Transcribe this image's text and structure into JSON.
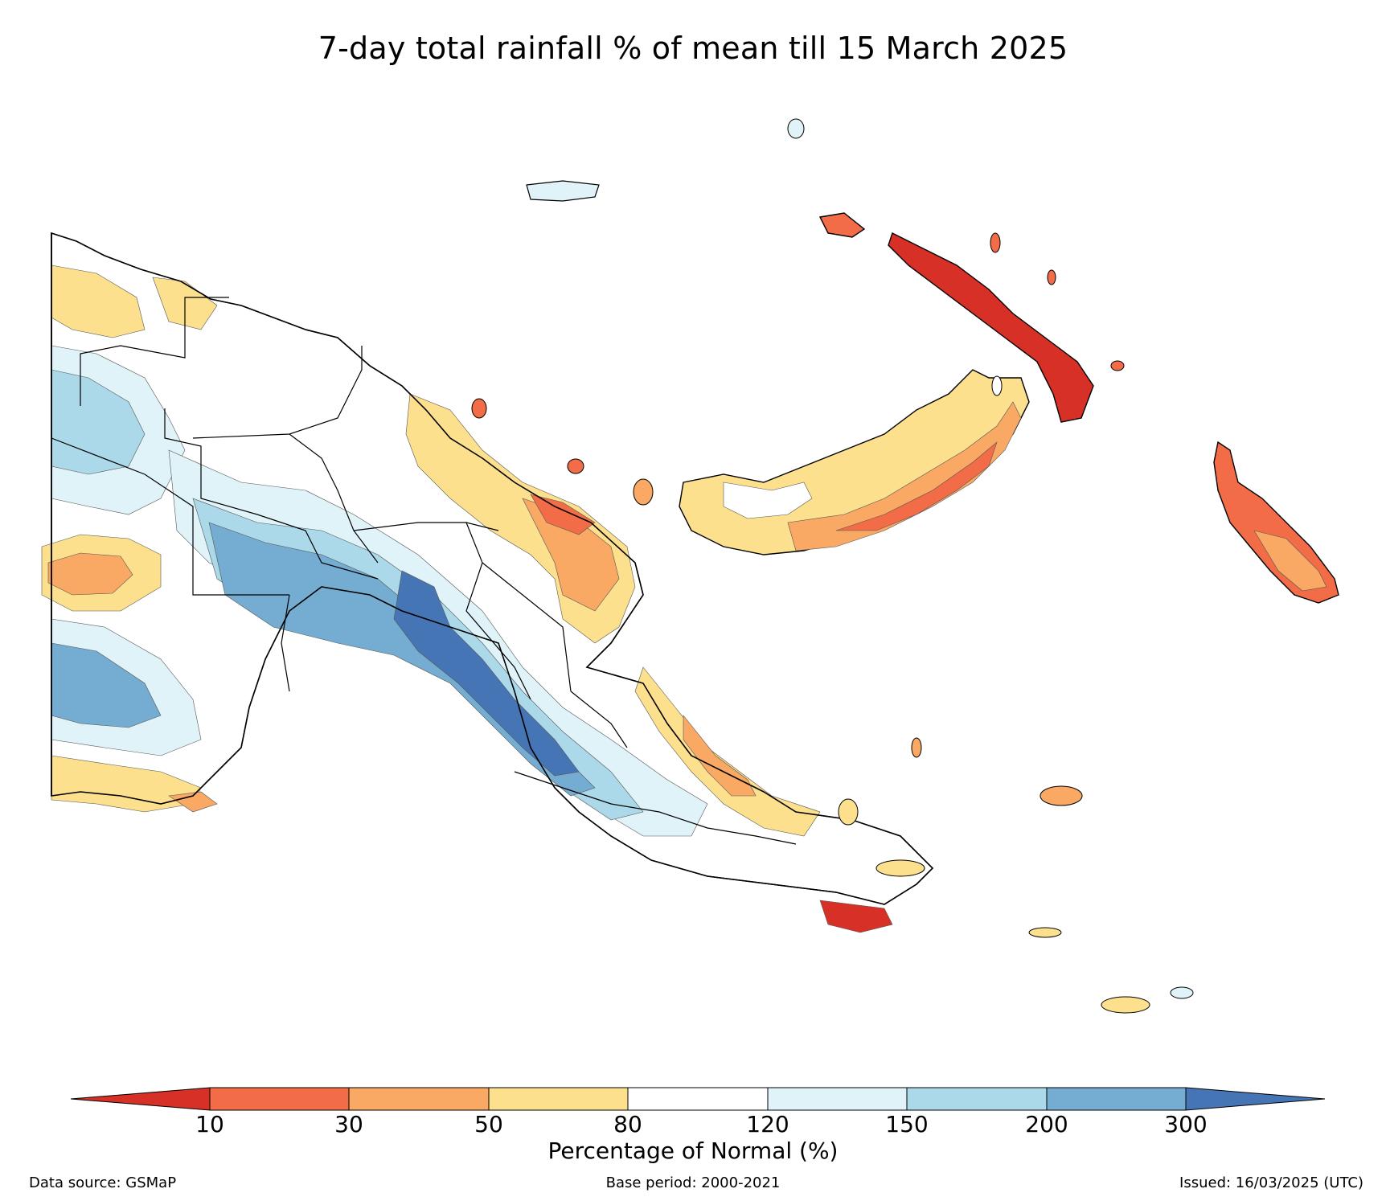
{
  "title": "7-day total rainfall % of mean till 15 March 2025",
  "colorbar": {
    "label": "Percentage of Normal (%)",
    "ticks": [
      "10",
      "30",
      "50",
      "80",
      "120",
      "150",
      "200",
      "300"
    ],
    "colors": {
      "below_10": "#d73027",
      "c10_30": "#f26c47",
      "c30_50": "#f9a964",
      "c50_80": "#fce08e",
      "c80_120": "#ffffff",
      "c120_150": "#e0f3f8",
      "c150_200": "#abd9e9",
      "c200_300": "#74add1",
      "above_300": "#4575b4"
    }
  },
  "footer": {
    "source": "Data source: GSMaP",
    "base_period": "Base period: 2000-2021",
    "issued": "Issued: 16/03/2025 (UTC)"
  },
  "map": {
    "region": "Papua New Guinea"
  }
}
